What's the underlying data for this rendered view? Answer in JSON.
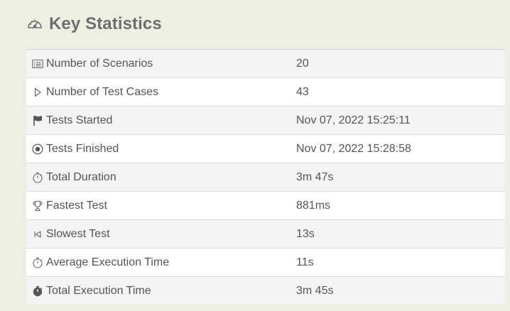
{
  "section": {
    "title": "Key Statistics",
    "icon": "speedometer-icon"
  },
  "stats": [
    {
      "label": "Number of Scenarios",
      "value": "20",
      "icon": "list-card-icon"
    },
    {
      "label": "Number of Test Cases",
      "value": "43",
      "icon": "play-outline-icon"
    },
    {
      "label": "Tests Started",
      "value": "Nov 07, 2022 15:25:11",
      "icon": "flag-icon"
    },
    {
      "label": "Tests Finished",
      "value": "Nov 07, 2022 15:28:58",
      "icon": "record-circle-icon"
    },
    {
      "label": "Total Duration",
      "value": "3m 47s",
      "icon": "stopwatch-icon"
    },
    {
      "label": "Fastest Test",
      "value": "881ms",
      "icon": "trophy-icon"
    },
    {
      "label": "Slowest Test",
      "value": "13s",
      "icon": "skip-back-icon"
    },
    {
      "label": "Average Execution Time",
      "value": "11s",
      "icon": "stopwatch-icon"
    },
    {
      "label": "Total Execution Time",
      "value": "3m 45s",
      "icon": "stopwatch-filled-icon"
    }
  ]
}
